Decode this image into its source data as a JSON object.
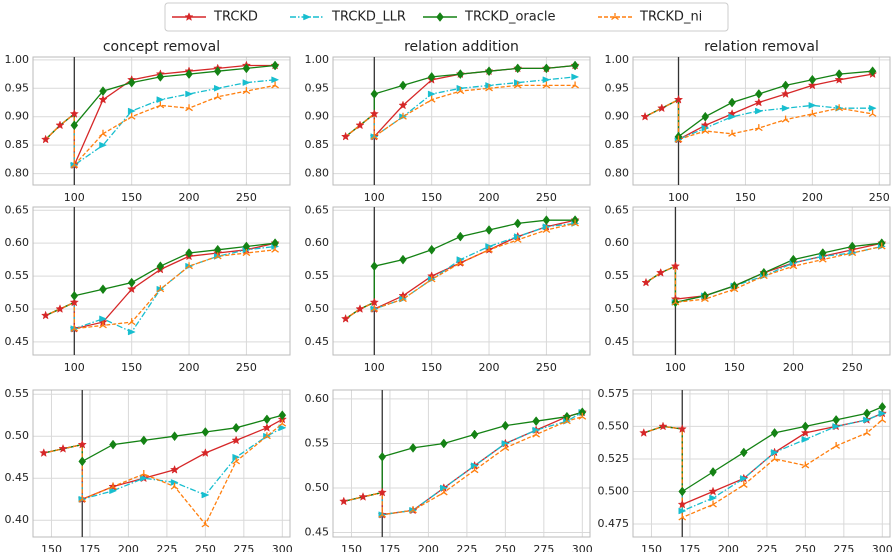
{
  "chart_data": [
    {
      "type": "line",
      "title": "concept removal",
      "vline": 100,
      "grid": true,
      "x": [
        75,
        87.5,
        100,
        100,
        125,
        150,
        175,
        200,
        225,
        250,
        275
      ],
      "xlim": [
        64,
        288
      ],
      "xticks": [
        100,
        150,
        200,
        250
      ],
      "ylim": [
        0.78,
        1.005
      ],
      "yticks": [
        {
          "value": 0.8,
          "label": "0.80"
        },
        0.85,
        {
          "value": 0.9,
          "label": "0.90"
        },
        0.95,
        {
          "value": 1,
          "label": "1.00"
        }
      ],
      "series": [
        {
          "name": "TRCKD",
          "color": "#d62728",
          "values": [
            0.86,
            0.885,
            0.905,
            0.815,
            0.93,
            0.965,
            0.975,
            0.98,
            0.985,
            0.99,
            0.99
          ]
        },
        {
          "name": "TRCKD_LLR",
          "color": "#17becf",
          "values": [
            0.86,
            0.885,
            0.905,
            0.815,
            0.85,
            0.91,
            0.93,
            0.94,
            0.95,
            0.96,
            0.965
          ]
        },
        {
          "name": "TRCKD_oracle",
          "color": "#148214",
          "values": [
            0.86,
            0.885,
            0.905,
            0.885,
            0.945,
            0.96,
            0.97,
            0.975,
            0.98,
            0.985,
            0.99
          ]
        },
        {
          "name": "TRCKD_ni",
          "color": "#ff7f0e",
          "values": [
            0.86,
            0.885,
            0.905,
            0.815,
            0.87,
            0.9,
            0.92,
            0.915,
            0.935,
            0.945,
            0.955
          ]
        }
      ]
    },
    {
      "type": "line",
      "title": "relation addition",
      "vline": 100,
      "grid": true,
      "x": [
        75,
        87.5,
        100,
        100,
        125,
        150,
        175,
        200,
        225,
        250,
        275
      ],
      "xlim": [
        64,
        288
      ],
      "xticks": [
        100,
        150,
        200,
        250
      ],
      "ylim": [
        0.78,
        1.005
      ],
      "yticks": [
        {
          "value": 0.8,
          "label": "0.80"
        },
        0.85,
        {
          "value": 0.9,
          "label": "0.90"
        },
        0.95,
        {
          "value": 1,
          "label": "1.00"
        }
      ],
      "series": [
        {
          "color": "#d62728",
          "values": [
            0.865,
            0.885,
            0.905,
            0.865,
            0.92,
            0.965,
            0.975,
            0.98,
            0.985,
            0.985,
            0.99
          ]
        },
        {
          "color": "#17becf",
          "values": [
            0.865,
            0.885,
            0.905,
            0.865,
            0.9,
            0.94,
            0.95,
            0.955,
            0.96,
            0.965,
            0.97
          ]
        },
        {
          "color": "#148214",
          "values": [
            0.865,
            0.885,
            0.905,
            0.94,
            0.955,
            0.97,
            0.975,
            0.98,
            0.985,
            0.985,
            0.99
          ]
        },
        {
          "color": "#ff7f0e",
          "values": [
            0.865,
            0.885,
            0.905,
            0.865,
            0.9,
            0.93,
            0.945,
            0.95,
            0.955,
            0.955,
            0.955
          ]
        }
      ]
    },
    {
      "type": "line",
      "title": "relation removal",
      "vline": 100,
      "grid": true,
      "x": [
        75,
        87.5,
        100,
        100,
        120,
        140,
        160,
        180,
        200,
        220,
        245
      ],
      "xlim": [
        66,
        258
      ],
      "xticks": [
        100,
        150,
        200,
        250
      ],
      "ylim": [
        0.78,
        1.005
      ],
      "yticks": [
        {
          "value": 0.8,
          "label": "0.80"
        },
        0.85,
        {
          "value": 0.9,
          "label": "0.90"
        },
        0.95,
        {
          "value": 1,
          "label": "1.00"
        }
      ],
      "series": [
        {
          "color": "#d62728",
          "values": [
            0.9,
            0.915,
            0.93,
            0.86,
            0.885,
            0.905,
            0.925,
            0.94,
            0.955,
            0.965,
            0.975
          ]
        },
        {
          "color": "#17becf",
          "values": [
            0.9,
            0.915,
            0.93,
            0.86,
            0.88,
            0.9,
            0.91,
            0.915,
            0.92,
            0.915,
            0.915
          ]
        },
        {
          "color": "#148214",
          "values": [
            0.9,
            0.915,
            0.93,
            0.865,
            0.9,
            0.925,
            0.94,
            0.955,
            0.965,
            0.975,
            0.98
          ]
        },
        {
          "color": "#ff7f0e",
          "values": [
            0.9,
            0.915,
            0.93,
            0.86,
            0.875,
            0.87,
            0.88,
            0.895,
            0.905,
            0.915,
            0.905
          ]
        }
      ]
    },
    {
      "type": "line",
      "vline": 100,
      "grid": true,
      "x": [
        75,
        87.5,
        100,
        100,
        125,
        150,
        175,
        200,
        225,
        250,
        275
      ],
      "xlim": [
        64,
        288
      ],
      "xticks": [
        100,
        150,
        200,
        250
      ],
      "ylim": [
        0.43,
        0.655
      ],
      "yticks": [
        0.45,
        {
          "value": 0.5,
          "label": "0.50"
        },
        0.55,
        {
          "value": 0.6,
          "label": "0.60"
        },
        0.65
      ],
      "series": [
        {
          "color": "#d62728",
          "values": [
            0.49,
            0.5,
            0.51,
            0.47,
            0.48,
            0.53,
            0.56,
            0.58,
            0.585,
            0.59,
            0.6
          ]
        },
        {
          "color": "#17becf",
          "values": [
            0.49,
            0.5,
            0.51,
            0.47,
            0.485,
            0.465,
            0.53,
            0.565,
            0.58,
            0.59,
            0.595
          ]
        },
        {
          "color": "#148214",
          "values": [
            0.49,
            0.5,
            0.51,
            0.52,
            0.53,
            0.54,
            0.565,
            0.585,
            0.59,
            0.595,
            0.6
          ]
        },
        {
          "color": "#ff7f0e",
          "values": [
            0.49,
            0.5,
            0.51,
            0.47,
            0.475,
            0.48,
            0.53,
            0.565,
            0.58,
            0.585,
            0.59
          ]
        }
      ]
    },
    {
      "type": "line",
      "vline": 100,
      "grid": true,
      "x": [
        75,
        87.5,
        100,
        100,
        125,
        150,
        175,
        200,
        225,
        250,
        275
      ],
      "xlim": [
        64,
        288
      ],
      "xticks": [
        100,
        150,
        200,
        250
      ],
      "ylim": [
        0.43,
        0.655
      ],
      "yticks": [
        0.45,
        {
          "value": 0.5,
          "label": "0.50"
        },
        0.55,
        {
          "value": 0.6,
          "label": "0.60"
        },
        0.65
      ],
      "series": [
        {
          "color": "#d62728",
          "values": [
            0.485,
            0.5,
            0.51,
            0.5,
            0.52,
            0.55,
            0.57,
            0.59,
            0.61,
            0.625,
            0.635
          ]
        },
        {
          "color": "#17becf",
          "values": [
            0.485,
            0.5,
            0.51,
            0.5,
            0.515,
            0.545,
            0.575,
            0.595,
            0.61,
            0.625,
            0.63
          ]
        },
        {
          "color": "#148214",
          "values": [
            0.485,
            0.5,
            0.51,
            0.565,
            0.575,
            0.59,
            0.61,
            0.62,
            0.63,
            0.635,
            0.635
          ]
        },
        {
          "color": "#ff7f0e",
          "values": [
            0.485,
            0.5,
            0.51,
            0.5,
            0.515,
            0.545,
            0.57,
            0.59,
            0.605,
            0.62,
            0.63
          ]
        }
      ]
    },
    {
      "type": "line",
      "vline": 100,
      "grid": true,
      "x": [
        75,
        87.5,
        100,
        100,
        125,
        150,
        175,
        200,
        225,
        250,
        275
      ],
      "xlim": [
        64,
        282
      ],
      "xticks": [
        100,
        150,
        200,
        250
      ],
      "ylim": [
        0.43,
        0.655
      ],
      "yticks": [
        0.45,
        {
          "value": 0.5,
          "label": "0.50"
        },
        0.55,
        {
          "value": 0.6,
          "label": "0.60"
        },
        0.65
      ],
      "series": [
        {
          "color": "#d62728",
          "values": [
            0.54,
            0.555,
            0.565,
            0.515,
            0.52,
            0.535,
            0.555,
            0.57,
            0.58,
            0.59,
            0.6
          ]
        },
        {
          "color": "#17becf",
          "values": [
            0.54,
            0.555,
            0.565,
            0.51,
            0.52,
            0.535,
            0.55,
            0.57,
            0.58,
            0.585,
            0.595
          ]
        },
        {
          "color": "#148214",
          "values": [
            0.54,
            0.555,
            0.565,
            0.51,
            0.52,
            0.535,
            0.555,
            0.575,
            0.585,
            0.595,
            0.6
          ]
        },
        {
          "color": "#ff7f0e",
          "values": [
            0.54,
            0.555,
            0.565,
            0.51,
            0.515,
            0.53,
            0.55,
            0.565,
            0.575,
            0.585,
            0.595
          ]
        }
      ]
    },
    {
      "type": "line",
      "vline": 170,
      "grid": true,
      "x": [
        145,
        157.5,
        170,
        170,
        190,
        210,
        230,
        250,
        270,
        290,
        300
      ],
      "xlim": [
        138,
        305
      ],
      "xticks": [
        150,
        175,
        200,
        225,
        250,
        275,
        300
      ],
      "ylim": [
        0.38,
        0.555
      ],
      "yticks": [
        {
          "value": 0.4,
          "label": "0.40"
        },
        0.45,
        {
          "value": 0.5,
          "label": "0.50"
        },
        0.55
      ],
      "series": [
        {
          "color": "#d62728",
          "values": [
            0.48,
            0.485,
            0.49,
            0.425,
            0.44,
            0.45,
            0.46,
            0.48,
            0.495,
            0.51,
            0.52
          ]
        },
        {
          "color": "#17becf",
          "values": [
            0.48,
            0.485,
            0.49,
            0.425,
            0.435,
            0.45,
            0.445,
            0.43,
            0.475,
            0.5,
            0.51
          ]
        },
        {
          "color": "#148214",
          "values": [
            0.48,
            0.485,
            0.49,
            0.47,
            0.49,
            0.495,
            0.5,
            0.505,
            0.51,
            0.52,
            0.525
          ]
        },
        {
          "color": "#ff7f0e",
          "values": [
            0.48,
            0.485,
            0.49,
            0.425,
            0.44,
            0.455,
            0.44,
            0.395,
            0.47,
            0.5,
            0.515
          ]
        }
      ]
    },
    {
      "type": "line",
      "vline": 170,
      "grid": true,
      "x": [
        145,
        157.5,
        170,
        170,
        190,
        210,
        230,
        250,
        270,
        290,
        300
      ],
      "xlim": [
        138,
        305
      ],
      "xticks": [
        150,
        175,
        200,
        225,
        250,
        275,
        300
      ],
      "ylim": [
        0.445,
        0.61
      ],
      "yticks": [
        0.45,
        {
          "value": 0.5,
          "label": "0.50"
        },
        0.55,
        {
          "value": 0.6,
          "label": "0.60"
        }
      ],
      "series": [
        {
          "color": "#d62728",
          "values": [
            0.485,
            0.49,
            0.495,
            0.47,
            0.475,
            0.5,
            0.525,
            0.55,
            0.565,
            0.58,
            0.585
          ]
        },
        {
          "color": "#17becf",
          "values": [
            0.485,
            0.49,
            0.495,
            0.47,
            0.475,
            0.5,
            0.525,
            0.55,
            0.565,
            0.575,
            0.585
          ]
        },
        {
          "color": "#148214",
          "values": [
            0.485,
            0.49,
            0.495,
            0.535,
            0.545,
            0.55,
            0.56,
            0.57,
            0.575,
            0.58,
            0.585
          ]
        },
        {
          "color": "#ff7f0e",
          "values": [
            0.485,
            0.49,
            0.495,
            0.47,
            0.475,
            0.495,
            0.52,
            0.545,
            0.56,
            0.575,
            0.58
          ]
        }
      ]
    },
    {
      "type": "line",
      "vline": 170,
      "grid": true,
      "x": [
        145,
        157.5,
        170,
        170,
        190,
        210,
        230,
        250,
        270,
        290,
        300
      ],
      "xlim": [
        138,
        305
      ],
      "xticks": [
        150,
        175,
        200,
        225,
        250,
        275,
        300
      ],
      "ylim": [
        0.465,
        0.578
      ],
      "yticks": [
        0.475,
        {
          "value": 0.5,
          "label": "0.500"
        },
        0.525,
        {
          "value": 0.55,
          "label": "0.550"
        },
        0.575
      ],
      "series": [
        {
          "color": "#d62728",
          "values": [
            0.545,
            0.55,
            0.548,
            0.49,
            0.5,
            0.51,
            0.53,
            0.545,
            0.55,
            0.555,
            0.56
          ]
        },
        {
          "color": "#17becf",
          "values": [
            0.545,
            0.55,
            0.548,
            0.485,
            0.495,
            0.51,
            0.53,
            0.54,
            0.55,
            0.555,
            0.56
          ]
        },
        {
          "color": "#148214",
          "values": [
            0.545,
            0.55,
            0.548,
            0.5,
            0.515,
            0.53,
            0.545,
            0.55,
            0.555,
            0.56,
            0.565
          ]
        },
        {
          "color": "#ff7f0e",
          "values": [
            0.545,
            0.55,
            0.548,
            0.48,
            0.49,
            0.505,
            0.525,
            0.52,
            0.535,
            0.545,
            0.555
          ]
        }
      ]
    }
  ]
}
